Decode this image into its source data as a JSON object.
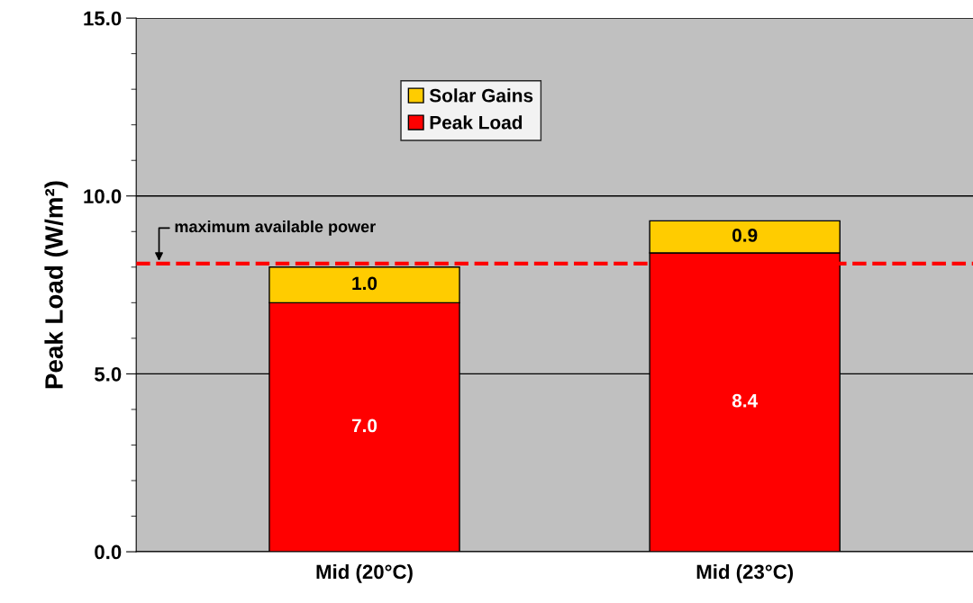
{
  "chart_data": {
    "type": "bar",
    "stacked": true,
    "ylabel": "Peak Load (W/m²)",
    "categories": [
      "Mid (20°C)",
      "Mid (23°C)"
    ],
    "series": [
      {
        "name": "Peak Load",
        "color": "#ff0000",
        "values": [
          7.0,
          8.4
        ],
        "value_labels": [
          "7.0",
          "8.4"
        ]
      },
      {
        "name": "Solar Gains",
        "color": "#ffcc00",
        "values": [
          1.0,
          0.9
        ],
        "value_labels": [
          "1.0",
          "0.9"
        ]
      }
    ],
    "ylim": [
      0,
      15
    ],
    "yticks": [
      {
        "value": 0,
        "label": "0.0"
      },
      {
        "value": 5,
        "label": "5.0"
      },
      {
        "value": 10,
        "label": "10.0"
      },
      {
        "value": 15,
        "label": "15.0"
      }
    ],
    "ref_lines": [
      {
        "axis": "y",
        "value": 8.1,
        "label": "maximum available power",
        "color": "#ff0000",
        "line_style": "dashed"
      }
    ],
    "grid": "y",
    "legend": "top"
  }
}
